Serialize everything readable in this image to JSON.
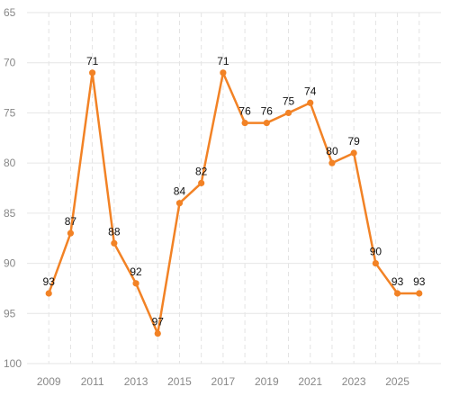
{
  "chart_data": {
    "type": "line",
    "title": "",
    "xlabel": "",
    "ylabel": "",
    "y_axis_inverted": true,
    "ylim": [
      65,
      100
    ],
    "yticks": [
      65,
      70,
      75,
      80,
      85,
      90,
      95,
      100
    ],
    "xlim": [
      2008,
      2027
    ],
    "xticks": [
      2009,
      2011,
      2013,
      2015,
      2017,
      2019,
      2021,
      2023,
      2025
    ],
    "grid": {
      "horizontal": true,
      "horizontal_style": "solid",
      "vertical": true,
      "vertical_style": "dashed"
    },
    "legend": "none",
    "series": [
      {
        "color": "#F28225",
        "x": [
          2009,
          2010,
          2011,
          2012,
          2013,
          2014,
          2015,
          2016,
          2017,
          2018,
          2019,
          2020,
          2021,
          2022,
          2023,
          2024,
          2025,
          2026
        ],
        "y": [
          93,
          87,
          71,
          88,
          92,
          97,
          84,
          82,
          71,
          76,
          76,
          75,
          74,
          80,
          79,
          90,
          93,
          93
        ],
        "labels": [
          "93",
          "87",
          "71",
          "88",
          "92",
          "97",
          "84",
          "82",
          "71",
          "76",
          "76",
          "75",
          "74",
          "80",
          "79",
          "90",
          "93",
          "93"
        ]
      }
    ]
  }
}
